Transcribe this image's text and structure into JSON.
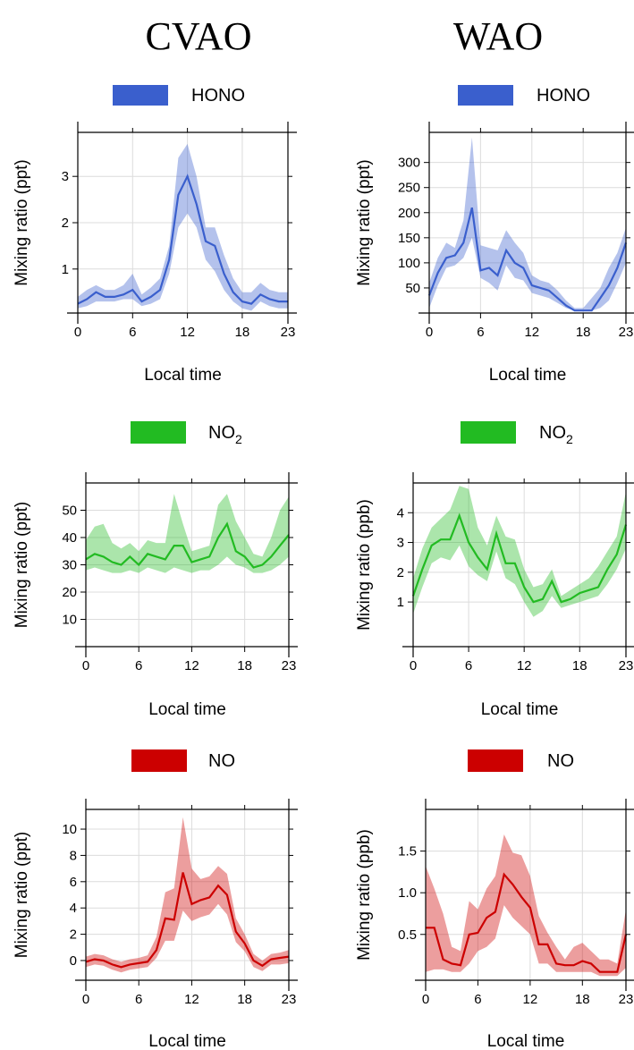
{
  "figure": {
    "column_titles": [
      "CVAO",
      "WAO"
    ]
  },
  "chart_data": [
    {
      "type": "line",
      "title": "",
      "legend": "HONO",
      "legend_sub": "",
      "color": "#3a5fcd",
      "xlabel": "Local time",
      "ylabel": "Mixing ratio (ppt)",
      "xlim": [
        0,
        23
      ],
      "ylim": [
        0.05,
        3.95
      ],
      "xticks": [
        0,
        6,
        12,
        18,
        23
      ],
      "yticks": [
        1,
        2,
        3
      ],
      "ytick_labels": [
        "1",
        "2",
        "3"
      ],
      "grid": true,
      "x": [
        0,
        1,
        2,
        3,
        4,
        5,
        6,
        7,
        8,
        9,
        10,
        11,
        12,
        13,
        14,
        15,
        16,
        17,
        18,
        19,
        20,
        21,
        22,
        23
      ],
      "mean": [
        0.25,
        0.35,
        0.5,
        0.4,
        0.4,
        0.45,
        0.55,
        0.3,
        0.4,
        0.55,
        1.2,
        2.6,
        3.0,
        2.4,
        1.6,
        1.5,
        0.9,
        0.5,
        0.3,
        0.25,
        0.45,
        0.35,
        0.3,
        0.3
      ],
      "lower": [
        0.15,
        0.2,
        0.3,
        0.3,
        0.3,
        0.35,
        0.35,
        0.2,
        0.25,
        0.35,
        0.9,
        1.9,
        2.2,
        1.9,
        1.2,
        0.95,
        0.55,
        0.3,
        0.15,
        0.1,
        0.3,
        0.2,
        0.15,
        0.15
      ],
      "upper": [
        0.4,
        0.55,
        0.65,
        0.55,
        0.55,
        0.65,
        0.9,
        0.45,
        0.6,
        0.8,
        1.5,
        3.4,
        3.7,
        3.0,
        1.9,
        1.9,
        1.3,
        0.8,
        0.5,
        0.5,
        0.7,
        0.55,
        0.5,
        0.5
      ]
    },
    {
      "type": "line",
      "title": "",
      "legend": "HONO",
      "legend_sub": "",
      "color": "#3a5fcd",
      "xlabel": "Local time",
      "ylabel": "Mixing ratio (ppt)",
      "xlim": [
        0,
        23
      ],
      "ylim": [
        0,
        360
      ],
      "xticks": [
        0,
        6,
        12,
        18,
        23
      ],
      "yticks": [
        50,
        100,
        150,
        200,
        250,
        300
      ],
      "ytick_labels": [
        "50",
        "100",
        "150",
        "200",
        "250",
        "300"
      ],
      "grid": true,
      "x": [
        0,
        1,
        2,
        3,
        4,
        5,
        6,
        7,
        8,
        9,
        10,
        11,
        12,
        13,
        14,
        15,
        16,
        17,
        18,
        19,
        20,
        21,
        22,
        23
      ],
      "mean": [
        35,
        80,
        110,
        115,
        140,
        210,
        85,
        90,
        75,
        125,
        100,
        90,
        55,
        50,
        45,
        30,
        15,
        5,
        5,
        5,
        30,
        55,
        90,
        140
      ],
      "lower": [
        10,
        55,
        90,
        95,
        110,
        150,
        70,
        60,
        45,
        95,
        70,
        65,
        40,
        35,
        30,
        20,
        10,
        5,
        5,
        5,
        10,
        25,
        60,
        100
      ],
      "upper": [
        60,
        110,
        140,
        130,
        185,
        350,
        135,
        130,
        125,
        165,
        140,
        120,
        75,
        65,
        60,
        45,
        25,
        10,
        10,
        30,
        50,
        90,
        120,
        170
      ]
    },
    {
      "type": "line",
      "title": "",
      "legend": "NO",
      "legend_sub": "2",
      "color": "#22bb22",
      "xlabel": "Local time",
      "ylabel": "Mixing ratio (ppt)",
      "xlim": [
        0,
        23
      ],
      "ylim": [
        0,
        60
      ],
      "xticks": [
        0,
        6,
        12,
        18,
        23
      ],
      "yticks": [
        10,
        20,
        30,
        40,
        50
      ],
      "ytick_labels": [
        "10",
        "20",
        "30",
        "40",
        "50"
      ],
      "grid": true,
      "x": [
        0,
        1,
        2,
        3,
        4,
        5,
        6,
        7,
        8,
        9,
        10,
        11,
        12,
        13,
        14,
        15,
        16,
        17,
        18,
        19,
        20,
        21,
        22,
        23
      ],
      "mean": [
        32,
        34,
        33,
        31,
        30,
        33,
        30,
        34,
        33,
        32,
        37,
        37,
        31,
        32,
        33,
        40,
        45,
        35,
        33,
        29,
        30,
        33,
        37,
        41
      ],
      "lower": [
        28,
        29,
        28,
        27,
        27,
        28,
        27,
        29,
        28,
        27,
        29,
        28,
        27,
        28,
        28,
        30,
        33,
        30,
        29,
        27,
        27,
        28,
        30,
        33
      ],
      "upper": [
        39,
        44,
        45,
        38,
        36,
        38,
        35,
        39,
        38,
        38,
        56,
        45,
        35,
        36,
        37,
        52,
        56,
        46,
        40,
        34,
        33,
        40,
        50,
        55
      ]
    },
    {
      "type": "line",
      "title": "",
      "legend": "NO",
      "legend_sub": "2",
      "color": "#22bb22",
      "xlabel": "Local time",
      "ylabel": "Mixing ratio (ppb)",
      "xlim": [
        0,
        23
      ],
      "ylim": [
        -0.5,
        5
      ],
      "xticks": [
        0,
        6,
        12,
        18,
        23
      ],
      "yticks": [
        1,
        2,
        3,
        4
      ],
      "ytick_labels": [
        "1",
        "2",
        "3",
        "4"
      ],
      "grid": true,
      "x": [
        0,
        1,
        2,
        3,
        4,
        5,
        6,
        7,
        8,
        9,
        10,
        11,
        12,
        13,
        14,
        15,
        16,
        17,
        18,
        19,
        20,
        21,
        22,
        23
      ],
      "mean": [
        1.2,
        2.1,
        2.9,
        3.1,
        3.1,
        3.9,
        3.0,
        2.5,
        2.1,
        3.3,
        2.3,
        2.3,
        1.5,
        1.0,
        1.1,
        1.7,
        1.0,
        1.1,
        1.3,
        1.4,
        1.5,
        2.1,
        2.6,
        3.6
      ],
      "lower": [
        0.6,
        1.5,
        2.3,
        2.5,
        2.4,
        2.9,
        2.2,
        1.9,
        1.7,
        2.7,
        1.8,
        1.6,
        1.0,
        0.5,
        0.7,
        1.2,
        0.8,
        0.9,
        1.0,
        1.1,
        1.2,
        1.6,
        2.1,
        2.8
      ],
      "upper": [
        1.8,
        2.8,
        3.5,
        3.8,
        4.1,
        4.9,
        4.8,
        3.5,
        2.9,
        3.9,
        3.2,
        3.1,
        2.1,
        1.5,
        1.6,
        2.1,
        1.2,
        1.4,
        1.6,
        1.8,
        2.2,
        2.7,
        3.2,
        4.7
      ]
    },
    {
      "type": "line",
      "title": "",
      "legend": "NO",
      "legend_sub": "",
      "color": "#cc0000",
      "xlabel": "Local time",
      "ylabel": "Mixing ratio (ppt)",
      "xlim": [
        0,
        23
      ],
      "ylim": [
        -1.5,
        11.5
      ],
      "xticks": [
        0,
        6,
        12,
        18,
        23
      ],
      "yticks": [
        0,
        2,
        4,
        6,
        8,
        10
      ],
      "ytick_labels": [
        "0",
        "2",
        "4",
        "6",
        "8",
        "10"
      ],
      "grid": true,
      "x": [
        0,
        1,
        2,
        3,
        4,
        5,
        6,
        7,
        8,
        9,
        10,
        11,
        12,
        13,
        14,
        15,
        16,
        17,
        18,
        19,
        20,
        21,
        22,
        23
      ],
      "mean": [
        -0.1,
        0.1,
        0.0,
        -0.3,
        -0.5,
        -0.3,
        -0.2,
        -0.1,
        0.8,
        3.2,
        3.1,
        6.7,
        4.3,
        4.6,
        4.8,
        5.7,
        5.0,
        2.2,
        1.3,
        0.0,
        -0.4,
        0.1,
        0.2,
        0.3
      ],
      "lower": [
        -0.5,
        -0.3,
        -0.4,
        -0.7,
        -0.9,
        -0.7,
        -0.6,
        -0.5,
        0.2,
        1.5,
        1.5,
        3.8,
        3.0,
        3.3,
        3.5,
        4.3,
        3.5,
        1.4,
        0.7,
        -0.5,
        -0.8,
        -0.3,
        -0.3,
        -0.2
      ],
      "upper": [
        0.3,
        0.5,
        0.4,
        0.1,
        -0.1,
        0.1,
        0.2,
        0.4,
        1.8,
        5.2,
        5.5,
        10.9,
        7.0,
        6.2,
        6.4,
        7.2,
        6.6,
        3.2,
        2.0,
        0.5,
        0.0,
        0.5,
        0.6,
        0.8
      ]
    },
    {
      "type": "line",
      "title": "",
      "legend": "NO",
      "legend_sub": "",
      "color": "#cc0000",
      "xlabel": "Local time",
      "ylabel": "Mixing ratio (ppb)",
      "xlim": [
        0,
        23
      ],
      "ylim": [
        -0.05,
        2.0
      ],
      "xticks": [
        0,
        6,
        12,
        18,
        23
      ],
      "yticks": [
        0.5,
        1.0,
        1.5
      ],
      "ytick_labels": [
        "0.5",
        "1.0",
        "1.5"
      ],
      "grid": true,
      "x": [
        0,
        1,
        2,
        3,
        4,
        5,
        6,
        7,
        8,
        9,
        10,
        11,
        12,
        13,
        14,
        15,
        16,
        17,
        18,
        19,
        20,
        21,
        22,
        23
      ],
      "mean": [
        0.58,
        0.58,
        0.2,
        0.15,
        0.13,
        0.5,
        0.52,
        0.7,
        0.77,
        1.22,
        1.1,
        0.95,
        0.82,
        0.38,
        0.38,
        0.15,
        0.13,
        0.13,
        0.18,
        0.15,
        0.05,
        0.05,
        0.05,
        0.5
      ],
      "lower": [
        0.05,
        0.08,
        0.08,
        0.05,
        0.05,
        0.15,
        0.3,
        0.35,
        0.45,
        0.85,
        0.7,
        0.6,
        0.5,
        0.15,
        0.15,
        0.05,
        0.05,
        0.05,
        0.05,
        0.05,
        0.0,
        0.0,
        0.0,
        0.1
      ],
      "upper": [
        1.32,
        1.05,
        0.75,
        0.35,
        0.3,
        0.9,
        0.8,
        1.05,
        1.2,
        1.7,
        1.48,
        1.45,
        1.2,
        0.72,
        0.52,
        0.35,
        0.2,
        0.35,
        0.4,
        0.3,
        0.2,
        0.2,
        0.15,
        0.8
      ]
    }
  ]
}
